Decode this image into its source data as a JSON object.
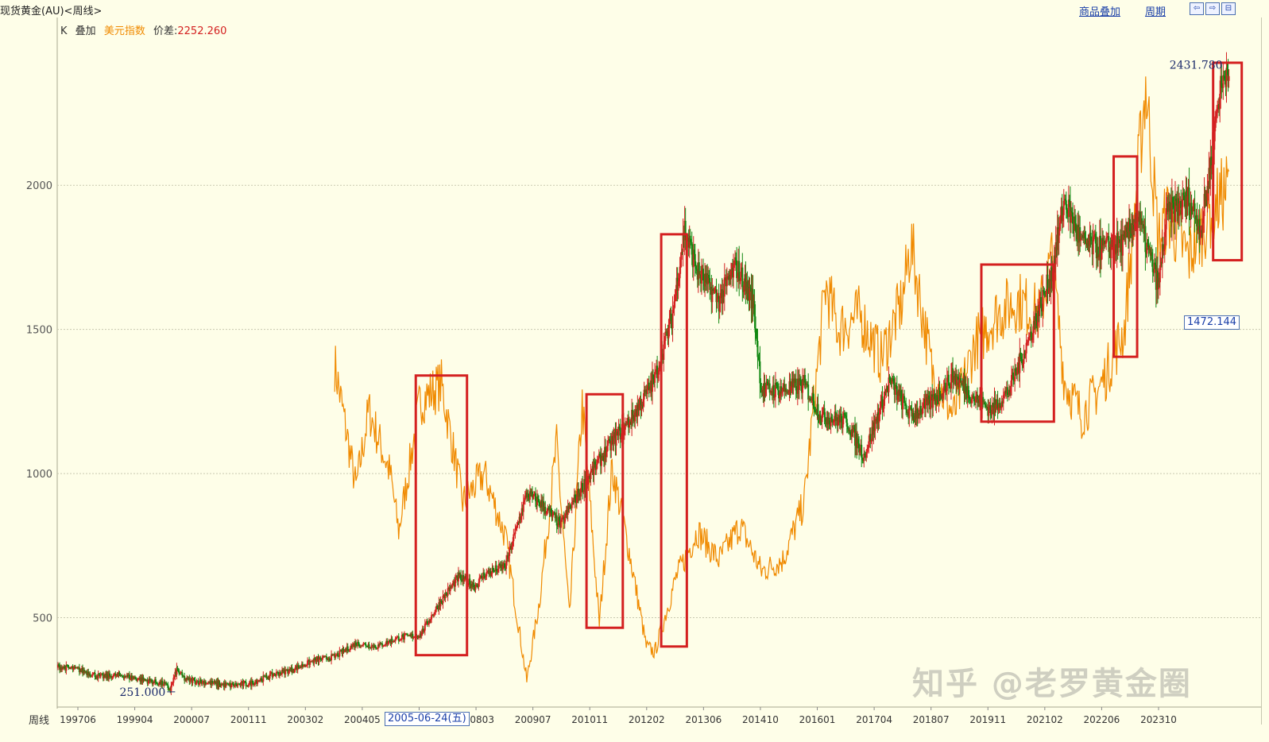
{
  "header": {
    "title": "现货黄金(AU)<周线>",
    "overlay_link": "商品叠加",
    "period_link": "周期",
    "nav_buttons": [
      "⇦",
      "⇨",
      "⊟"
    ]
  },
  "legend": {
    "k_label": "K",
    "overlay_label": "叠加",
    "index_label": "美元指数",
    "diff_label": "价差:",
    "diff_value": "2252.260"
  },
  "bottom": {
    "period_label": "周线",
    "cursor_date": "2005-06-24(五)",
    "cursor_price": "1472.144"
  },
  "watermark": "知乎 @老罗黄金圈",
  "colors": {
    "gold_up": "#d42020",
    "gold_down": "#118811",
    "dollar_index": "#f08a00",
    "box": "#d42020",
    "grid": "#c8c8b0",
    "axis_label_blue": "#1a3fa8"
  },
  "chart_data": {
    "type": "line",
    "ylim": [
      190,
      2560
    ],
    "yticks": [
      500,
      1000,
      1500,
      2000
    ],
    "xticks": [
      "199706",
      "199904",
      "200007",
      "200111",
      "200302",
      "200405",
      "20",
      "200803",
      "200907",
      "201011",
      "201202",
      "201306",
      "201410",
      "201601",
      "201704",
      "201807",
      "201911",
      "202102",
      "202206",
      "202310"
    ],
    "xlim": [
      1997.0,
      2024.7
    ],
    "annotations": [
      {
        "label": "2431.780",
        "x": 2024.45,
        "y": 2431.78
      },
      {
        "label": "251.000",
        "x": 1999.65,
        "y": 251.0
      }
    ],
    "series": [
      {
        "name": "现货黄金(AU)",
        "x": [
          1997.0,
          1997.5,
          1998.0,
          1998.5,
          1999.0,
          1999.5,
          1999.65,
          1999.8,
          2000.0,
          2000.5,
          2001.0,
          2001.5,
          2002.0,
          2002.5,
          2003.0,
          2003.5,
          2004.0,
          2004.5,
          2005.0,
          2005.5,
          2006.0,
          2006.4,
          2006.8,
          2007.0,
          2007.5,
          2008.0,
          2008.3,
          2008.8,
          2009.0,
          2009.5,
          2010.0,
          2010.5,
          2011.0,
          2011.4,
          2011.7,
          2012.0,
          2012.5,
          2012.9,
          2013.3,
          2013.5,
          2014.0,
          2014.5,
          2014.9,
          2015.5,
          2015.9,
          2016.5,
          2017.0,
          2017.5,
          2018.0,
          2018.5,
          2018.9,
          2019.3,
          2019.8,
          2020.3,
          2020.6,
          2021.0,
          2021.5,
          2022.0,
          2022.3,
          2022.8,
          2023.0,
          2023.5,
          2023.8,
          2024.0,
          2024.2,
          2024.45
        ],
        "values": [
          330,
          320,
          295,
          300,
          285,
          270,
          251,
          320,
          285,
          275,
          265,
          270,
          300,
          320,
          350,
          365,
          410,
          400,
          430,
          440,
          560,
          640,
          610,
          650,
          680,
          930,
          900,
          820,
          880,
          1000,
          1110,
          1200,
          1330,
          1540,
          1850,
          1700,
          1600,
          1720,
          1600,
          1290,
          1290,
          1310,
          1200,
          1180,
          1060,
          1320,
          1200,
          1250,
          1340,
          1260,
          1220,
          1290,
          1480,
          1700,
          1950,
          1800,
          1780,
          1800,
          1900,
          1650,
          1900,
          1950,
          1850,
          2050,
          2300,
          2431.78
        ]
      },
      {
        "name": "美元指数",
        "x": [
          2003.5,
          2004.0,
          2004.3,
          2004.8,
          2005.0,
          2005.5,
          2006.0,
          2006.5,
          2007.0,
          2007.5,
          2008.0,
          2008.3,
          2008.7,
          2009.0,
          2009.3,
          2009.7,
          2010.0,
          2010.4,
          2010.8,
          2011.0,
          2011.5,
          2012.0,
          2012.5,
          2013.0,
          2013.5,
          2014.0,
          2014.5,
          2015.0,
          2015.3,
          2015.8,
          2016.3,
          2016.8,
          2017.0,
          2017.5,
          2018.0,
          2018.5,
          2019.0,
          2019.5,
          2020.0,
          2020.3,
          2020.6,
          2021.0,
          2021.5,
          2022.0,
          2022.5,
          2022.8,
          2023.0,
          2023.5,
          2024.0,
          2024.45
        ],
        "values": [
          1380,
          950,
          1220,
          1000,
          800,
          1250,
          1310,
          900,
          1000,
          780,
          280,
          560,
          1100,
          500,
          1240,
          480,
          1020,
          730,
          400,
          380,
          640,
          800,
          700,
          820,
          660,
          700,
          900,
          1650,
          1500,
          1550,
          1400,
          1600,
          1800,
          1350,
          1200,
          1450,
          1550,
          1600,
          1550,
          1750,
          1320,
          1200,
          1320,
          1500,
          2350,
          1800,
          1900,
          1750,
          1900,
          2000
        ]
      }
    ],
    "highlight_boxes": [
      {
        "x0": 2005.4,
        "x1": 2006.6,
        "y0": 370,
        "y1": 1340
      },
      {
        "x0": 2009.4,
        "x1": 2010.25,
        "y0": 465,
        "y1": 1275
      },
      {
        "x0": 2011.15,
        "x1": 2011.75,
        "y0": 400,
        "y1": 1830
      },
      {
        "x0": 2018.65,
        "x1": 2020.35,
        "y0": 1180,
        "y1": 1725
      },
      {
        "x0": 2021.75,
        "x1": 2022.3,
        "y0": 1405,
        "y1": 2100
      },
      {
        "x0": 2024.08,
        "x1": 2024.75,
        "y0": 1740,
        "y1": 2425
      }
    ]
  }
}
